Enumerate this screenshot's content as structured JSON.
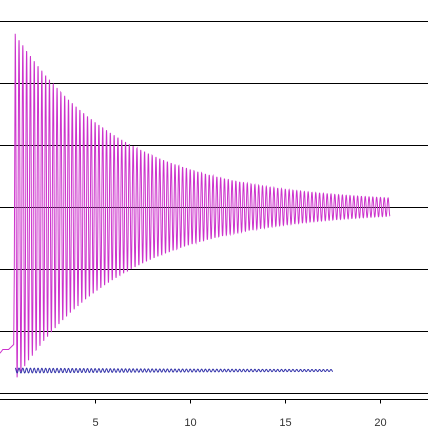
{
  "chart_data": {
    "type": "line",
    "title": "",
    "xlabel": "",
    "ylabel": "",
    "xlim": [
      0,
      22.5
    ],
    "ylim": [
      -1.55,
      1.6
    ],
    "x_ticks": [
      {
        "value": 5,
        "label": "5"
      },
      {
        "value": 10,
        "label": "10"
      },
      {
        "value": 15,
        "label": "15"
      },
      {
        "value": 20,
        "label": "20"
      }
    ],
    "y_grid_values": [
      1.5,
      1.0,
      0.5,
      0.0,
      -0.5,
      -1.0,
      -1.5
    ],
    "grid": "horizontal",
    "legend": "none",
    "series": [
      {
        "color": "#cc33cc",
        "kind": "damped-oscillation",
        "pre_step_level": -1.15,
        "step_x": 0.8,
        "peak_amplitude": 1.4,
        "final_amplitude": 0.03,
        "decay_rate": 0.175,
        "period": 0.2,
        "start_x": 0.8,
        "end_x": 20.5
      },
      {
        "color": "#3333aa",
        "kind": "damped-oscillation",
        "baseline": -1.32,
        "peak_amplitude": 0.02,
        "final_amplitude": 0.004,
        "decay_rate": 0.08,
        "period": 0.2,
        "start_x": 0.8,
        "end_x": 17.5
      }
    ]
  }
}
